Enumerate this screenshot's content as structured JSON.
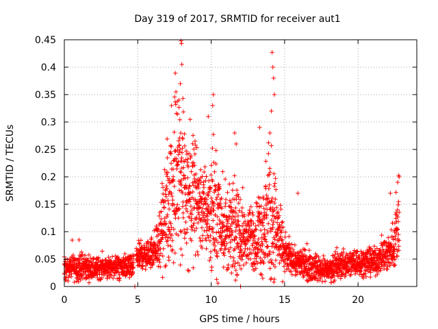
{
  "chart_data": {
    "type": "scatter",
    "title": "Day 319 of 2017, SRMTID for receiver aut1",
    "xlabel": "GPS time / hours",
    "ylabel": "SRMTID / TECUs",
    "xlim": [
      0,
      24
    ],
    "ylim": [
      0,
      0.45
    ],
    "x_ticks": [
      0,
      5,
      10,
      15,
      20
    ],
    "y_ticks": [
      0,
      0.05,
      0.1,
      0.15,
      0.2,
      0.25,
      0.3,
      0.35,
      0.4,
      0.45
    ],
    "x_tick_labels": [
      "0",
      "5",
      "10",
      "15",
      "20"
    ],
    "y_tick_labels": [
      "0",
      "0.05",
      "0.1",
      "0.15",
      "0.2",
      "0.25",
      "0.3",
      "0.35",
      "0.4",
      "0.45"
    ],
    "grid": true,
    "marker": "+",
    "color": "#ff0000",
    "series": [
      {
        "name": "SRMTID",
        "profile_hours": [
          0,
          1,
          2,
          3,
          4,
          4.7,
          5,
          5.8,
          6.5,
          7,
          7.5,
          8,
          8.5,
          9,
          9.5,
          10,
          10.5,
          11,
          11.5,
          12,
          12.5,
          13,
          13.5,
          14,
          14.5,
          15,
          15.5,
          16,
          17,
          18,
          19,
          20,
          21,
          21.5,
          22,
          22.5,
          22.8
        ],
        "profile_median": [
          0.035,
          0.035,
          0.033,
          0.035,
          0.035,
          0.035,
          0.055,
          0.058,
          0.08,
          0.14,
          0.19,
          0.19,
          0.17,
          0.16,
          0.14,
          0.14,
          0.13,
          0.1,
          0.1,
          0.09,
          0.085,
          0.09,
          0.1,
          0.13,
          0.1,
          0.06,
          0.05,
          0.04,
          0.035,
          0.03,
          0.04,
          0.045,
          0.045,
          0.05,
          0.06,
          0.08,
          0.12
        ],
        "profile_spread": [
          0.012,
          0.015,
          0.012,
          0.012,
          0.012,
          0.012,
          0.015,
          0.015,
          0.03,
          0.07,
          0.08,
          0.08,
          0.07,
          0.06,
          0.05,
          0.06,
          0.06,
          0.04,
          0.05,
          0.035,
          0.03,
          0.04,
          0.05,
          0.08,
          0.05,
          0.02,
          0.015,
          0.015,
          0.015,
          0.012,
          0.015,
          0.015,
          0.015,
          0.015,
          0.02,
          0.03,
          0.04
        ],
        "outliers": [
          {
            "x": 7.95,
            "y": 0.448
          },
          {
            "x": 7.98,
            "y": 0.443
          },
          {
            "x": 8.0,
            "y": 0.405
          },
          {
            "x": 7.9,
            "y": 0.37
          },
          {
            "x": 7.8,
            "y": 0.34
          },
          {
            "x": 7.3,
            "y": 0.33
          },
          {
            "x": 7.6,
            "y": 0.355
          },
          {
            "x": 10.15,
            "y": 0.35
          },
          {
            "x": 10.1,
            "y": 0.33
          },
          {
            "x": 9.8,
            "y": 0.31
          },
          {
            "x": 14.15,
            "y": 0.427
          },
          {
            "x": 14.2,
            "y": 0.4
          },
          {
            "x": 14.25,
            "y": 0.38
          },
          {
            "x": 14.3,
            "y": 0.35
          },
          {
            "x": 14.1,
            "y": 0.32
          },
          {
            "x": 14.0,
            "y": 0.28
          },
          {
            "x": 13.3,
            "y": 0.29
          },
          {
            "x": 11.6,
            "y": 0.28
          },
          {
            "x": 11.7,
            "y": 0.26
          },
          {
            "x": 8.9,
            "y": 0.265
          },
          {
            "x": 15.9,
            "y": 0.17
          },
          {
            "x": 22.8,
            "y": 0.2
          },
          {
            "x": 22.7,
            "y": 0.19
          },
          {
            "x": 22.2,
            "y": 0.17
          },
          {
            "x": 1.0,
            "y": 0.085
          },
          {
            "x": 4.8,
            "y": 0.0
          },
          {
            "x": 12.0,
            "y": 0.0
          }
        ]
      }
    ]
  }
}
